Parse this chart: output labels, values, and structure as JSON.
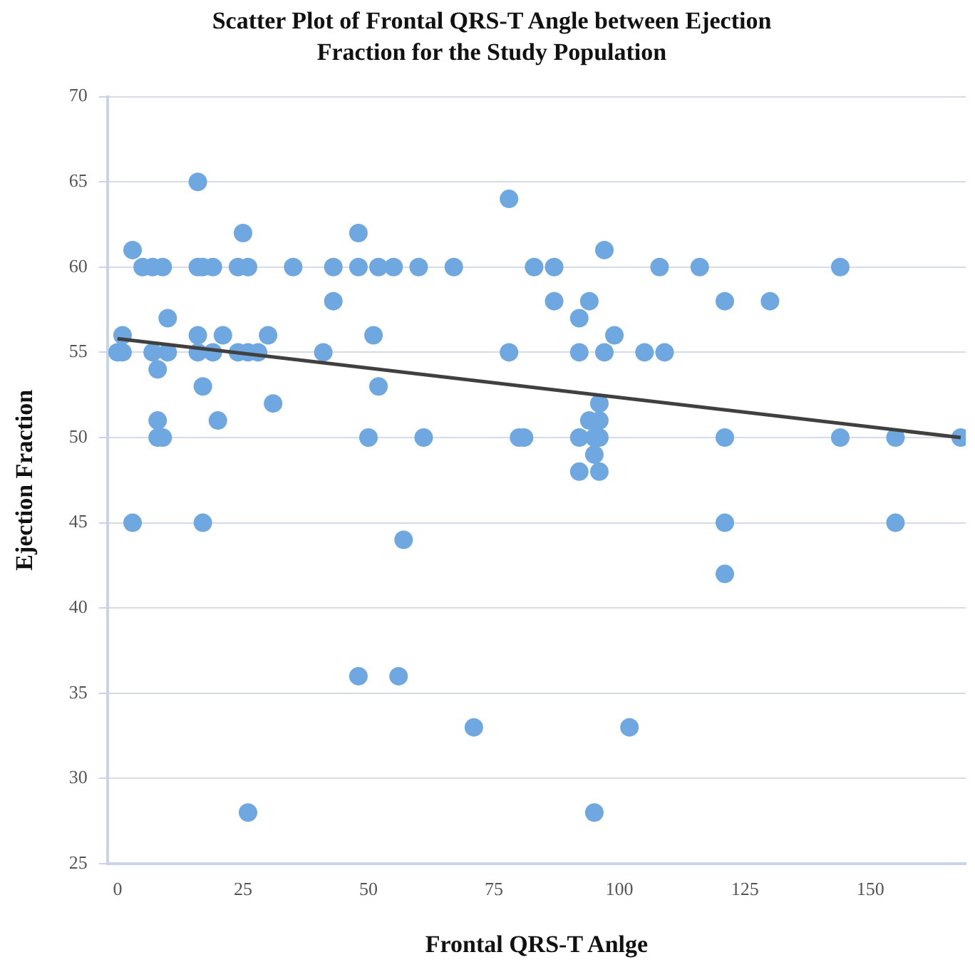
{
  "chart_data": {
    "type": "scatter",
    "title": "Scatter Plot of Frontal QRS-T Angle between Ejection Fraction for the Study Population",
    "xlabel": "Frontal QRS-T Anlge",
    "ylabel": "Ejection Fraction",
    "xlim": [
      -2,
      169
    ],
    "ylim": [
      25,
      70
    ],
    "xticks": [
      0,
      25,
      50,
      75,
      100,
      125,
      150
    ],
    "yticks": [
      25,
      30,
      35,
      40,
      45,
      50,
      55,
      60,
      65,
      70
    ],
    "grid": "y",
    "legend": false,
    "marker": "circle",
    "series": [
      {
        "color": "#6fa8e0",
        "x": [
          16,
          78,
          25,
          48,
          3,
          97,
          5,
          7,
          9,
          16,
          17,
          19,
          24,
          26,
          35,
          43,
          48,
          52,
          55,
          60,
          67,
          83,
          87,
          108,
          116,
          144,
          43,
          87,
          94,
          121,
          130,
          10,
          92,
          1,
          16,
          21,
          30,
          51,
          99,
          0,
          1,
          7,
          10,
          16,
          19,
          24,
          26,
          28,
          41,
          78,
          92,
          97,
          105,
          109,
          8,
          17,
          52,
          31,
          96,
          8,
          20,
          94,
          96,
          8,
          9,
          50,
          61,
          80,
          81,
          92,
          95,
          96,
          121,
          144,
          155,
          168,
          95,
          92,
          96,
          3,
          17,
          121,
          155,
          57,
          121,
          48,
          56,
          71,
          102,
          26,
          95
        ],
        "values": [
          65,
          64,
          62,
          62,
          61,
          61,
          60,
          60,
          60,
          60,
          60,
          60,
          60,
          60,
          60,
          60,
          60,
          60,
          60,
          60,
          60,
          60,
          60,
          60,
          60,
          60,
          58,
          58,
          58,
          58,
          58,
          57,
          57,
          56,
          56,
          56,
          56,
          56,
          56,
          55,
          55,
          55,
          55,
          55,
          55,
          55,
          55,
          55,
          55,
          55,
          55,
          55,
          55,
          55,
          54,
          53,
          53,
          52,
          52,
          51,
          51,
          51,
          51,
          50,
          50,
          50,
          50,
          50,
          50,
          50,
          50,
          50,
          50,
          50,
          50,
          50,
          49,
          48,
          48,
          45,
          45,
          45,
          45,
          44,
          42,
          36,
          36,
          33,
          33,
          28,
          28
        ]
      },
      {
        "type": "line",
        "marker": "none",
        "color": "#404040",
        "x": [
          0,
          168
        ],
        "values": [
          55.8,
          50
        ]
      }
    ]
  }
}
